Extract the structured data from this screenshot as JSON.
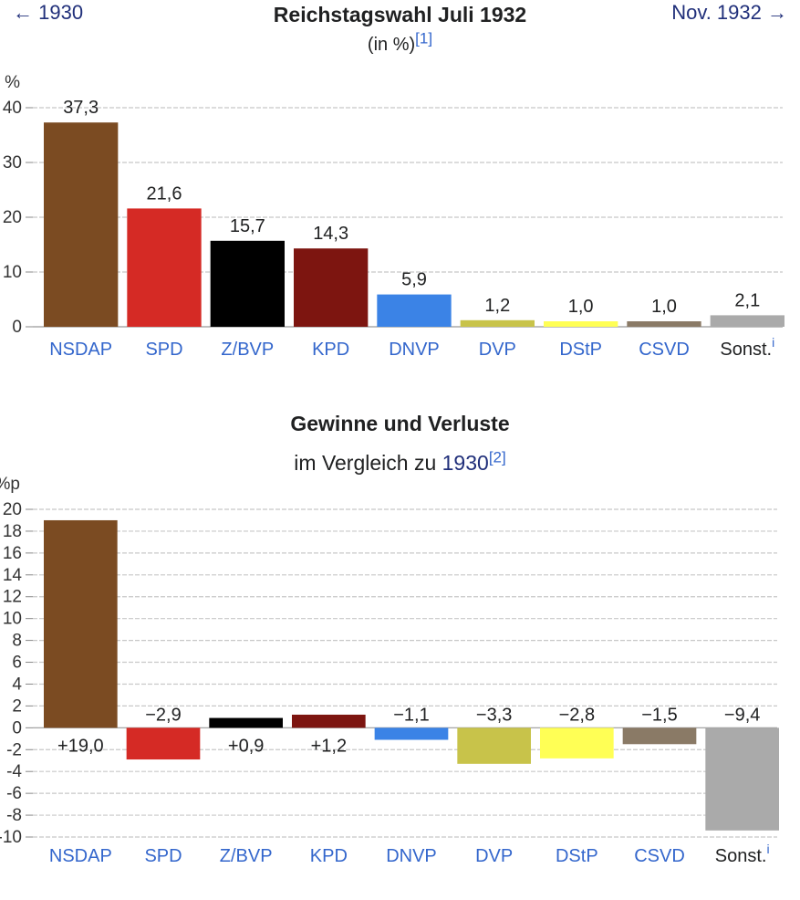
{
  "nav": {
    "prev_label": "← 1930",
    "next_label": "Nov. 1932 →"
  },
  "chart_data": [
    {
      "type": "bar",
      "title": "Reichstagswahl Juli 1932",
      "subtitle": "(in %)",
      "subtitle_ref": "[1]",
      "ylabel": "%",
      "ylim": [
        0,
        40
      ],
      "yticks": [
        0,
        10,
        20,
        30,
        40
      ],
      "grid": true,
      "categories": [
        "NSDAP",
        "SPD",
        "Z/BVP",
        "KPD",
        "DNVP",
        "DVP",
        "DStP",
        "CSVD",
        "Sonst."
      ],
      "category_note": "i",
      "values": [
        37.3,
        21.6,
        15.7,
        14.3,
        5.9,
        1.2,
        1.0,
        1.0,
        2.1
      ],
      "value_labels": [
        "37,3",
        "21,6",
        "15,7",
        "14,3",
        "5,9",
        "1,2",
        "1,0",
        "1,0",
        "2,1"
      ],
      "colors": [
        "#7b4b22",
        "#d52a25",
        "#000000",
        "#7d1510",
        "#3b83e6",
        "#c8c34a",
        "#ffff55",
        "#8a7a66",
        "#aaaaaa"
      ]
    },
    {
      "type": "bar",
      "title": "Gewinne und Verluste",
      "subtitle_prefix": "im Vergleich zu",
      "subtitle_year": "1930",
      "subtitle_ref": "[2]",
      "ylabel": "%p",
      "ylim": [
        -10,
        20
      ],
      "yticks": [
        -10,
        -8,
        -6,
        -4,
        -2,
        0,
        2,
        4,
        6,
        8,
        10,
        12,
        14,
        16,
        18,
        20
      ],
      "ytick_labels": [
        "-10",
        "-8",
        "-6",
        "-4",
        "-2",
        "0",
        "2",
        "4",
        "6",
        "8",
        "10",
        "12",
        "14",
        "16",
        "18",
        "20"
      ],
      "grid": true,
      "categories": [
        "NSDAP",
        "SPD",
        "Z/BVP",
        "KPD",
        "DNVP",
        "DVP",
        "DStP",
        "CSVD",
        "Sonst."
      ],
      "category_note": "i",
      "values": [
        19.0,
        -2.9,
        0.9,
        1.2,
        -1.1,
        -3.3,
        -2.8,
        -1.5,
        -9.4
      ],
      "value_labels": [
        "+19,0",
        "−2,9",
        "+0,9",
        "+1,2",
        "−1,1",
        "−3,3",
        "−2,8",
        "−1,5",
        "−9,4"
      ],
      "colors": [
        "#7b4b22",
        "#d52a25",
        "#000000",
        "#7d1510",
        "#3b83e6",
        "#c8c34a",
        "#ffff55",
        "#8a7a66",
        "#aaaaaa"
      ]
    }
  ]
}
